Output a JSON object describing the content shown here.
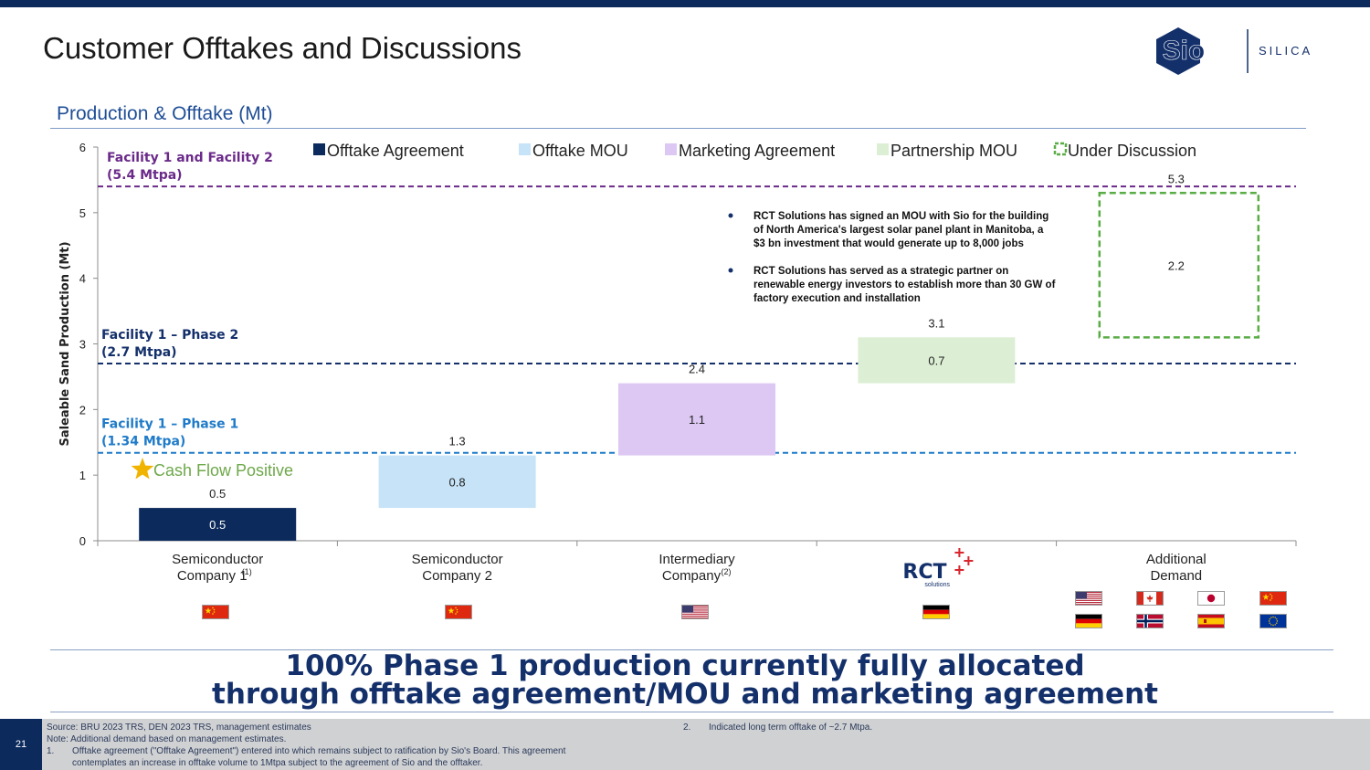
{
  "page": {
    "title": "Customer Offtakes and Discussions",
    "section_title": "Production & Offtake (Mt)",
    "page_number": "21",
    "logo": {
      "mark": "Sio",
      "wordmark": "SILICA"
    },
    "headline_line1": "100% Phase 1 production currently fully allocated",
    "headline_line2": "through offtake agreement/MOU and marketing agreement",
    "footnotes": {
      "source": "Source: BRU 2023 TRS, DEN 2023 TRS, management estimates",
      "note": "Note: Additional demand based on management estimates.",
      "n1_num": "1.",
      "n1_line1": "Offtake agreement (\"Offtake Agreement\") entered into which remains subject to ratification by Sio's Board. This agreement",
      "n1_line2": "contemplates an increase in offtake volume to 1Mtpa subject to the agreement of Sio and the offtaker.",
      "n2_num": "2.",
      "n2_text": "Indicated long term offtake of ~2.7 Mtpa."
    }
  },
  "chart_data": {
    "type": "bar",
    "subtype": "waterfall",
    "ylabel": "Saleable Sand Production (Mt)",
    "ylim": [
      0,
      6
    ],
    "yticks": [
      "0",
      "1",
      "2",
      "3",
      "4",
      "5",
      "6"
    ],
    "categories": [
      {
        "line1": "Semiconductor",
        "line2": "Company 1",
        "sup": "(1)"
      },
      {
        "line1": "Semiconductor",
        "line2": "Company 2",
        "sup": ""
      },
      {
        "line1": "Intermediary",
        "line2": "Company",
        "sup": "(2)"
      },
      {
        "line1": "",
        "line2": "",
        "sup": "",
        "logo": "RCT solutions"
      },
      {
        "line1": "Additional",
        "line2": "Demand",
        "sup": ""
      }
    ],
    "legend": [
      {
        "label": "Offtake Agreement",
        "color": "#0c2a5c",
        "style": "solid"
      },
      {
        "label": "Offtake MOU",
        "color": "#c6e3f7",
        "style": "solid"
      },
      {
        "label": "Marketing Agreement",
        "color": "#dcc8f2",
        "style": "solid"
      },
      {
        "label": "Partnership MOU",
        "color": "#dcefd4",
        "style": "solid"
      },
      {
        "label": "Under Discussion",
        "color": "#5aad46",
        "style": "dashed"
      }
    ],
    "bars": [
      {
        "start": 0,
        "end": 0.5,
        "value_label": "0.5",
        "total_label": "0.5",
        "series": 0
      },
      {
        "start": 0.5,
        "end": 1.3,
        "value_label": "0.8",
        "total_label": "1.3",
        "series": 1
      },
      {
        "start": 1.3,
        "end": 2.4,
        "value_label": "1.1",
        "total_label": "2.4",
        "series": 2
      },
      {
        "start": 2.4,
        "end": 3.1,
        "value_label": "0.7",
        "total_label": "3.1",
        "series": 3
      },
      {
        "start": 3.1,
        "end": 5.3,
        "value_label": "2.2",
        "total_label": "5.3",
        "series": 4
      }
    ],
    "reference_lines": [
      {
        "value": 5.4,
        "line1": "Facility 1 and Facility 2",
        "line2": "(5.4 Mtpa)",
        "color": "#6b2a8a"
      },
      {
        "value": 2.7,
        "line1": "Facility 1 – Phase 2",
        "line2": "(2.7 Mtpa)",
        "color": "#14306b"
      },
      {
        "value": 1.34,
        "line1": "Facility 1 – Phase 1",
        "line2": "(1.34 Mtpa)",
        "color": "#1f7bc9"
      }
    ],
    "annotations": {
      "cash_flow": "Cash Flow Positive",
      "bullets": [
        [
          "RCT Solutions has signed an MOU with Sio for the building",
          "of North America's largest solar panel plant in Manitoba, a",
          "$3 bn investment that would generate up to 8,000 jobs"
        ],
        [
          "RCT Solutions has served as a strategic partner on",
          "renewable energy investors to establish more than 30 GW of",
          "factory execution and installation"
        ]
      ]
    },
    "grid": false
  }
}
